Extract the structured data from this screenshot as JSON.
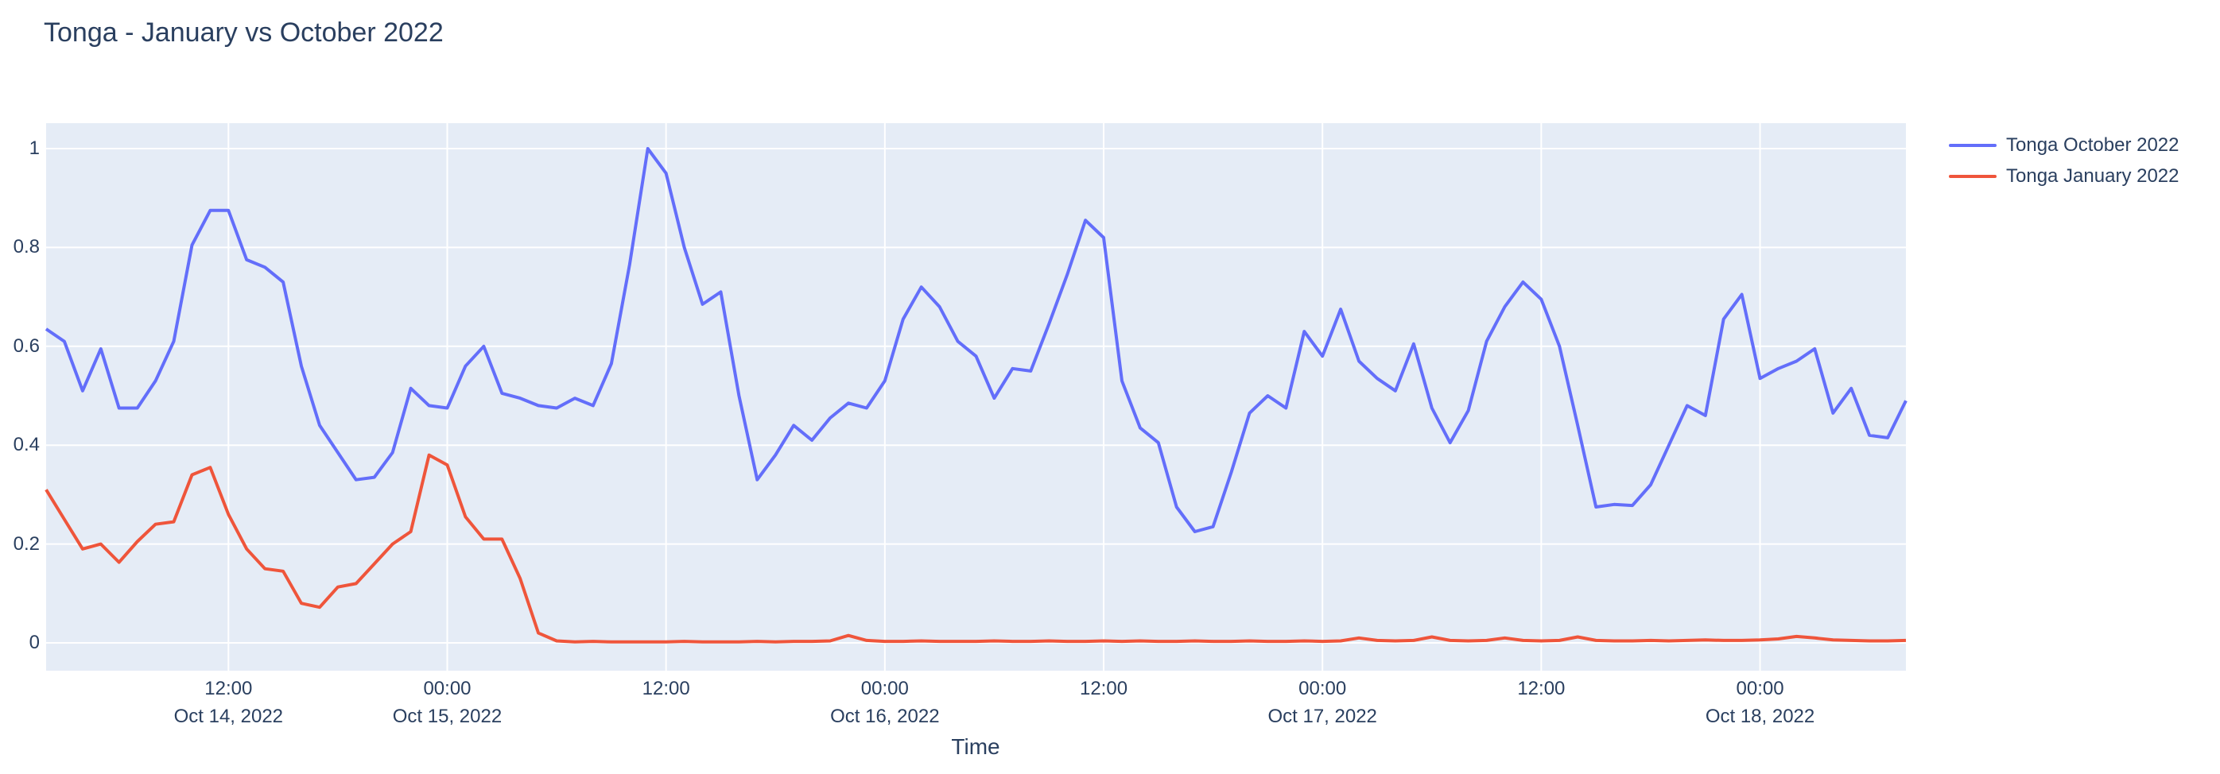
{
  "title": "Tonga - January vs October 2022",
  "colors": {
    "paper_bg": "#ffffff",
    "plot_bg": "#e5ecf6",
    "grid": "#ffffff",
    "text": "#2a3f5f",
    "series_october": "#636efa",
    "series_january": "#ef553b"
  },
  "legend": {
    "items": [
      {
        "label": "Tonga October 2022",
        "color": "#636efa"
      },
      {
        "label": "Tonga January 2022",
        "color": "#ef553b"
      }
    ]
  },
  "chart_data": {
    "type": "line",
    "title": "Tonga - January vs October 2022",
    "xlabel": "Time",
    "ylabel": "",
    "grid": true,
    "legend_position": "right",
    "plot_bg": "#e5ecf6",
    "ylim": [
      -0.056,
      1.051
    ],
    "x_start": "2022-10-14 02:00",
    "x_step_hours": 1,
    "n_points": 103,
    "y_ticks": [
      {
        "value": 0,
        "label": "0"
      },
      {
        "value": 0.2,
        "label": "0.2"
      },
      {
        "value": 0.4,
        "label": "0.4"
      },
      {
        "value": 0.6,
        "label": "0.6"
      },
      {
        "value": 0.8,
        "label": "0.8"
      },
      {
        "value": 1,
        "label": "1"
      }
    ],
    "x_ticks": [
      {
        "hour": 10,
        "time": "12:00",
        "date": "Oct 14, 2022"
      },
      {
        "hour": 22,
        "time": "00:00",
        "date": "Oct 15, 2022"
      },
      {
        "hour": 34,
        "time": "12:00",
        "date": ""
      },
      {
        "hour": 46,
        "time": "00:00",
        "date": "Oct 16, 2022"
      },
      {
        "hour": 58,
        "time": "12:00",
        "date": ""
      },
      {
        "hour": 70,
        "time": "00:00",
        "date": "Oct 17, 2022"
      },
      {
        "hour": 82,
        "time": "12:00",
        "date": ""
      },
      {
        "hour": 94,
        "time": "00:00",
        "date": "Oct 18, 2022"
      }
    ],
    "series": [
      {
        "name": "Tonga October 2022",
        "color": "#636efa",
        "values": [
          0.635,
          0.61,
          0.51,
          0.595,
          0.475,
          0.475,
          0.53,
          0.61,
          0.805,
          0.875,
          0.875,
          0.775,
          0.76,
          0.73,
          0.56,
          0.44,
          0.385,
          0.33,
          0.335,
          0.385,
          0.515,
          0.48,
          0.475,
          0.56,
          0.6,
          0.505,
          0.495,
          0.48,
          0.475,
          0.495,
          0.48,
          0.565,
          0.765,
          1.0,
          0.95,
          0.8,
          0.685,
          0.71,
          0.5,
          0.33,
          0.38,
          0.44,
          0.41,
          0.455,
          0.485,
          0.475,
          0.53,
          0.655,
          0.72,
          0.68,
          0.61,
          0.58,
          0.495,
          0.555,
          0.55,
          0.645,
          0.745,
          0.855,
          0.82,
          0.53,
          0.435,
          0.405,
          0.275,
          0.225,
          0.235,
          0.345,
          0.465,
          0.5,
          0.475,
          0.63,
          0.58,
          0.675,
          0.57,
          0.535,
          0.51,
          0.605,
          0.475,
          0.405,
          0.47,
          0.61,
          0.68,
          0.73,
          0.695,
          0.6,
          0.44,
          0.275,
          0.28,
          0.278,
          0.32,
          0.4,
          0.48,
          0.46,
          0.655,
          0.705,
          0.535,
          0.555,
          0.57,
          0.595,
          0.465,
          0.515,
          0.42,
          0.415,
          0.49
        ]
      },
      {
        "name": "Tonga January 2022",
        "color": "#ef553b",
        "values": [
          0.31,
          0.25,
          0.19,
          0.2,
          0.163,
          0.205,
          0.24,
          0.245,
          0.34,
          0.355,
          0.26,
          0.19,
          0.15,
          0.145,
          0.08,
          0.072,
          0.113,
          0.12,
          0.16,
          0.2,
          0.225,
          0.38,
          0.36,
          0.255,
          0.21,
          0.21,
          0.13,
          0.02,
          0.004,
          0.002,
          0.003,
          0.002,
          0.002,
          0.002,
          0.002,
          0.003,
          0.002,
          0.002,
          0.002,
          0.003,
          0.002,
          0.003,
          0.003,
          0.004,
          0.015,
          0.005,
          0.003,
          0.003,
          0.004,
          0.003,
          0.003,
          0.003,
          0.004,
          0.003,
          0.003,
          0.004,
          0.003,
          0.003,
          0.004,
          0.003,
          0.004,
          0.003,
          0.003,
          0.004,
          0.003,
          0.003,
          0.004,
          0.003,
          0.003,
          0.004,
          0.003,
          0.004,
          0.01,
          0.005,
          0.004,
          0.005,
          0.012,
          0.005,
          0.004,
          0.005,
          0.01,
          0.005,
          0.004,
          0.005,
          0.012,
          0.005,
          0.004,
          0.004,
          0.005,
          0.004,
          0.005,
          0.006,
          0.005,
          0.005,
          0.006,
          0.008,
          0.013,
          0.01,
          0.006,
          0.005,
          0.004,
          0.004,
          0.005
        ]
      }
    ]
  }
}
